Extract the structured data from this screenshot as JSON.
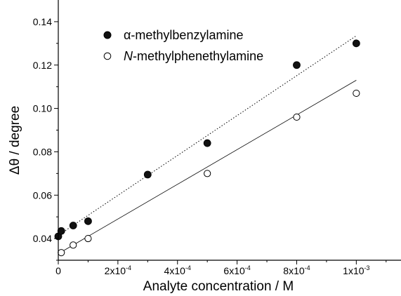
{
  "chart_data": {
    "type": "scatter",
    "title": "",
    "xlabel": "Analyte concentration / M",
    "ylabel": "Δθ / degree",
    "xlim": [
      0,
      0.00115
    ],
    "ylim": [
      0.03,
      0.15
    ],
    "x_ticks": [
      {
        "value": 0,
        "base": "0",
        "exp": ""
      },
      {
        "value": 0.0002,
        "base": "2x10",
        "exp": "-4"
      },
      {
        "value": 0.0004,
        "base": "4x10",
        "exp": "-4"
      },
      {
        "value": 0.0006,
        "base": "6x10",
        "exp": "-4"
      },
      {
        "value": 0.0008,
        "base": "8x10",
        "exp": "-4"
      },
      {
        "value": 0.001,
        "base": "1x10",
        "exp": "-3"
      }
    ],
    "y_ticks": [
      {
        "value": 0.04,
        "label": "0.04"
      },
      {
        "value": 0.06,
        "label": "0.06"
      },
      {
        "value": 0.08,
        "label": "0.08"
      },
      {
        "value": 0.1,
        "label": "0.10"
      },
      {
        "value": 0.12,
        "label": "0.12"
      },
      {
        "value": 0.14,
        "label": "0.14"
      }
    ],
    "legend_position": "top-left",
    "series": [
      {
        "name_prefix": "α",
        "name_rest": "-methylbenzylamine",
        "marker": "filled-circle",
        "color": "#000000",
        "fit_line": "dotted",
        "x": [
          0,
          1e-05,
          5e-05,
          0.0001,
          0.0003,
          0.0005,
          0.0008,
          0.001
        ],
        "y": [
          0.041,
          0.0435,
          0.046,
          0.048,
          0.0695,
          0.084,
          0.12,
          0.13
        ],
        "fit": {
          "slope": 92.0,
          "intercept": 0.0415
        }
      },
      {
        "name_prefix": "N",
        "name_rest": "-methylphenethylamine",
        "marker": "open-circle",
        "color": "#000000",
        "fit_line": "solid",
        "x": [
          1e-05,
          5e-05,
          0.0001,
          0.0005,
          0.0008,
          0.001
        ],
        "y": [
          0.0335,
          0.037,
          0.04,
          0.07,
          0.096,
          0.107
        ],
        "fit": {
          "slope": 80.0,
          "intercept": 0.033
        }
      }
    ]
  }
}
